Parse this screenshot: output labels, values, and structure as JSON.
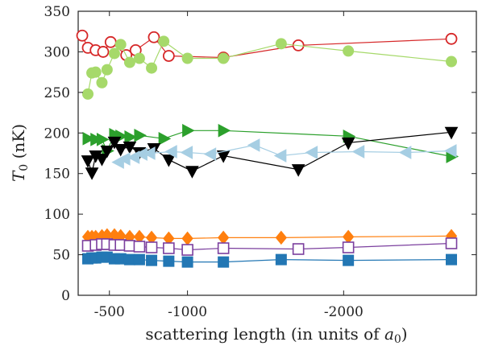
{
  "chart_data": {
    "type": "line",
    "title": "",
    "xlabel": "scattering length (in units of a0)",
    "xlabel_parts": [
      "scattering length (in units of ",
      "a",
      "0",
      ")"
    ],
    "ylabel": "T0 (nK)",
    "ylabel_parts": [
      "T",
      "0",
      " (nK)"
    ],
    "xlim": [
      -300,
      -2850
    ],
    "ylim": [
      0,
      350
    ],
    "x_ticks": [
      -500,
      -1000,
      -2000
    ],
    "x_tick_labels": [
      "-500",
      "-1000",
      "-2000"
    ],
    "y_ticks": [
      0,
      50,
      100,
      150,
      200,
      250,
      300,
      350
    ],
    "y_tick_labels": [
      "0",
      "50",
      "100",
      "150",
      "200",
      "250",
      "300",
      "350"
    ],
    "grid": false,
    "legend": "none",
    "series": [
      {
        "marker": "circle-open",
        "color": "#d62728",
        "fill": "#ffffff",
        "points": [
          {
            "x": -326,
            "y": 320
          },
          {
            "x": -362,
            "y": 305
          },
          {
            "x": -412,
            "y": 302
          },
          {
            "x": -460,
            "y": 300
          },
          {
            "x": -508,
            "y": 312
          },
          {
            "x": -608,
            "y": 296
          },
          {
            "x": -668,
            "y": 302
          },
          {
            "x": -785,
            "y": 318
          },
          {
            "x": -880,
            "y": 295
          },
          {
            "x": -1230,
            "y": 293
          },
          {
            "x": -1710,
            "y": 308
          },
          {
            "x": -2690,
            "y": 316
          }
        ]
      },
      {
        "marker": "circle",
        "color": "#a6d96a",
        "fill": "#a6d96a",
        "points": [
          {
            "x": -362,
            "y": 248
          },
          {
            "x": -388,
            "y": 274
          },
          {
            "x": -412,
            "y": 275
          },
          {
            "x": -452,
            "y": 262
          },
          {
            "x": -485,
            "y": 278
          },
          {
            "x": -532,
            "y": 298
          },
          {
            "x": -572,
            "y": 309
          },
          {
            "x": -630,
            "y": 287
          },
          {
            "x": -692,
            "y": 292
          },
          {
            "x": -770,
            "y": 280
          },
          {
            "x": -848,
            "y": 313
          },
          {
            "x": -1000,
            "y": 292
          },
          {
            "x": -1230,
            "y": 292
          },
          {
            "x": -1600,
            "y": 310
          },
          {
            "x": -2030,
            "y": 301
          },
          {
            "x": -2690,
            "y": 288
          }
        ]
      },
      {
        "marker": "triangle-right",
        "color": "#2ca02c",
        "fill": "#2ca02c",
        "points": [
          {
            "x": -362,
            "y": 193
          },
          {
            "x": -412,
            "y": 192
          },
          {
            "x": -452,
            "y": 192
          },
          {
            "x": -485,
            "y": 178
          },
          {
            "x": -532,
            "y": 198
          },
          {
            "x": -572,
            "y": 196
          },
          {
            "x": -630,
            "y": 195
          },
          {
            "x": -692,
            "y": 197
          },
          {
            "x": -848,
            "y": 193
          },
          {
            "x": -1000,
            "y": 203
          },
          {
            "x": -1230,
            "y": 203
          },
          {
            "x": -2030,
            "y": 196
          },
          {
            "x": -2690,
            "y": 171
          }
        ]
      },
      {
        "marker": "triangle-down",
        "color": "#000000",
        "fill": "#000000",
        "points": [
          {
            "x": -362,
            "y": 166
          },
          {
            "x": -388,
            "y": 151
          },
          {
            "x": -412,
            "y": 172
          },
          {
            "x": -452,
            "y": 168
          },
          {
            "x": -485,
            "y": 178
          },
          {
            "x": -532,
            "y": 189
          },
          {
            "x": -572,
            "y": 180
          },
          {
            "x": -630,
            "y": 183
          },
          {
            "x": -692,
            "y": 176
          },
          {
            "x": -785,
            "y": 181
          },
          {
            "x": -880,
            "y": 167
          },
          {
            "x": -1030,
            "y": 153
          },
          {
            "x": -1230,
            "y": 172
          },
          {
            "x": -1710,
            "y": 155
          },
          {
            "x": -2030,
            "y": 188
          },
          {
            "x": -2690,
            "y": 201
          }
        ]
      },
      {
        "marker": "triangle-left",
        "color": "#a6cee3",
        "fill": "#a6cee3",
        "points": [
          {
            "x": -560,
            "y": 164
          },
          {
            "x": -600,
            "y": 168
          },
          {
            "x": -660,
            "y": 170
          },
          {
            "x": -710,
            "y": 174
          },
          {
            "x": -760,
            "y": 175
          },
          {
            "x": -900,
            "y": 177
          },
          {
            "x": -1000,
            "y": 176
          },
          {
            "x": -1150,
            "y": 174
          },
          {
            "x": -1430,
            "y": 185
          },
          {
            "x": -1600,
            "y": 172
          },
          {
            "x": -1800,
            "y": 176
          },
          {
            "x": -2100,
            "y": 177
          },
          {
            "x": -2400,
            "y": 176
          },
          {
            "x": -2690,
            "y": 178
          }
        ]
      },
      {
        "marker": "diamond",
        "color": "#ff7f0e",
        "fill": "#ff7f0e",
        "points": [
          {
            "x": -362,
            "y": 72
          },
          {
            "x": -388,
            "y": 72
          },
          {
            "x": -412,
            "y": 72
          },
          {
            "x": -452,
            "y": 73
          },
          {
            "x": -485,
            "y": 74
          },
          {
            "x": -532,
            "y": 74
          },
          {
            "x": -572,
            "y": 73
          },
          {
            "x": -630,
            "y": 72
          },
          {
            "x": -692,
            "y": 72
          },
          {
            "x": -770,
            "y": 71
          },
          {
            "x": -880,
            "y": 70
          },
          {
            "x": -1000,
            "y": 70
          },
          {
            "x": -1230,
            "y": 71
          },
          {
            "x": -1600,
            "y": 71
          },
          {
            "x": -2030,
            "y": 72
          },
          {
            "x": -2690,
            "y": 73
          }
        ]
      },
      {
        "marker": "square-open",
        "color": "#7b3f9e",
        "fill": "#ffffff",
        "points": [
          {
            "x": -362,
            "y": 61
          },
          {
            "x": -412,
            "y": 62
          },
          {
            "x": -452,
            "y": 63
          },
          {
            "x": -485,
            "y": 63
          },
          {
            "x": -532,
            "y": 62
          },
          {
            "x": -572,
            "y": 62
          },
          {
            "x": -630,
            "y": 61
          },
          {
            "x": -692,
            "y": 60
          },
          {
            "x": -770,
            "y": 59
          },
          {
            "x": -880,
            "y": 58
          },
          {
            "x": -1000,
            "y": 56
          },
          {
            "x": -1230,
            "y": 58
          },
          {
            "x": -1710,
            "y": 57
          },
          {
            "x": -2030,
            "y": 59
          },
          {
            "x": -2690,
            "y": 64
          }
        ]
      },
      {
        "marker": "square",
        "color": "#2377b4",
        "fill": "#2377b4",
        "points": [
          {
            "x": -362,
            "y": 45
          },
          {
            "x": -388,
            "y": 46
          },
          {
            "x": -412,
            "y": 46
          },
          {
            "x": -452,
            "y": 47
          },
          {
            "x": -485,
            "y": 47
          },
          {
            "x": -532,
            "y": 45
          },
          {
            "x": -572,
            "y": 45
          },
          {
            "x": -630,
            "y": 44
          },
          {
            "x": -692,
            "y": 44
          },
          {
            "x": -770,
            "y": 43
          },
          {
            "x": -880,
            "y": 42
          },
          {
            "x": -1000,
            "y": 41
          },
          {
            "x": -1230,
            "y": 41
          },
          {
            "x": -1600,
            "y": 44
          },
          {
            "x": -2030,
            "y": 43
          },
          {
            "x": -2690,
            "y": 44
          }
        ]
      }
    ]
  }
}
